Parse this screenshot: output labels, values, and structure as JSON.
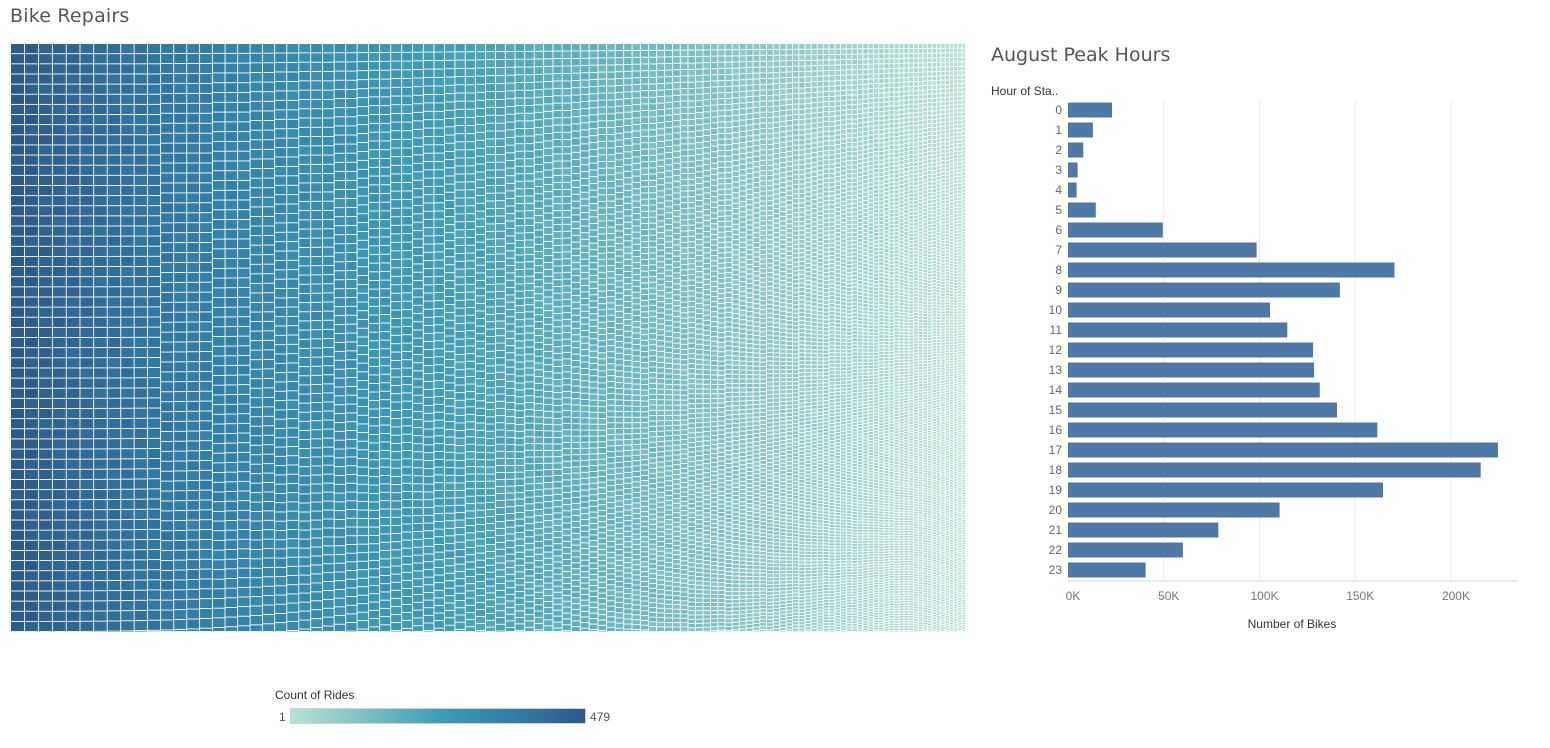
{
  "treemap": {
    "title": "Bike Repairs",
    "legend": {
      "title": "Count of Rides",
      "min_label": "1",
      "max_label": "479",
      "min_value": 1,
      "max_value": 479,
      "colors": [
        "#b9e1d6",
        "#7dc0c2",
        "#3f9db6",
        "#327ea6",
        "#2c5a86"
      ]
    }
  },
  "chart_data": {
    "type": "bar",
    "orientation": "horizontal",
    "title": "August Peak Hours",
    "ylabel": "Hour of Sta..",
    "xlabel": "Number of Bikes",
    "categories": [
      "0",
      "1",
      "2",
      "3",
      "4",
      "5",
      "6",
      "7",
      "8",
      "9",
      "10",
      "11",
      "12",
      "13",
      "14",
      "15",
      "16",
      "17",
      "18",
      "19",
      "20",
      "21",
      "22",
      "23"
    ],
    "values": [
      23000,
      13000,
      8000,
      5000,
      4500,
      14500,
      49500,
      98500,
      170500,
      142000,
      105500,
      114500,
      128000,
      128500,
      131500,
      140500,
      161500,
      224500,
      215500,
      164500,
      110500,
      78500,
      60000,
      40500
    ],
    "xlim": [
      0,
      235000
    ],
    "xticks": [
      0,
      50000,
      100000,
      150000,
      200000
    ],
    "xtick_labels": [
      "0K",
      "50K",
      "100K",
      "150K",
      "200K"
    ],
    "grid": true,
    "bar_color": "#4e79a7"
  }
}
